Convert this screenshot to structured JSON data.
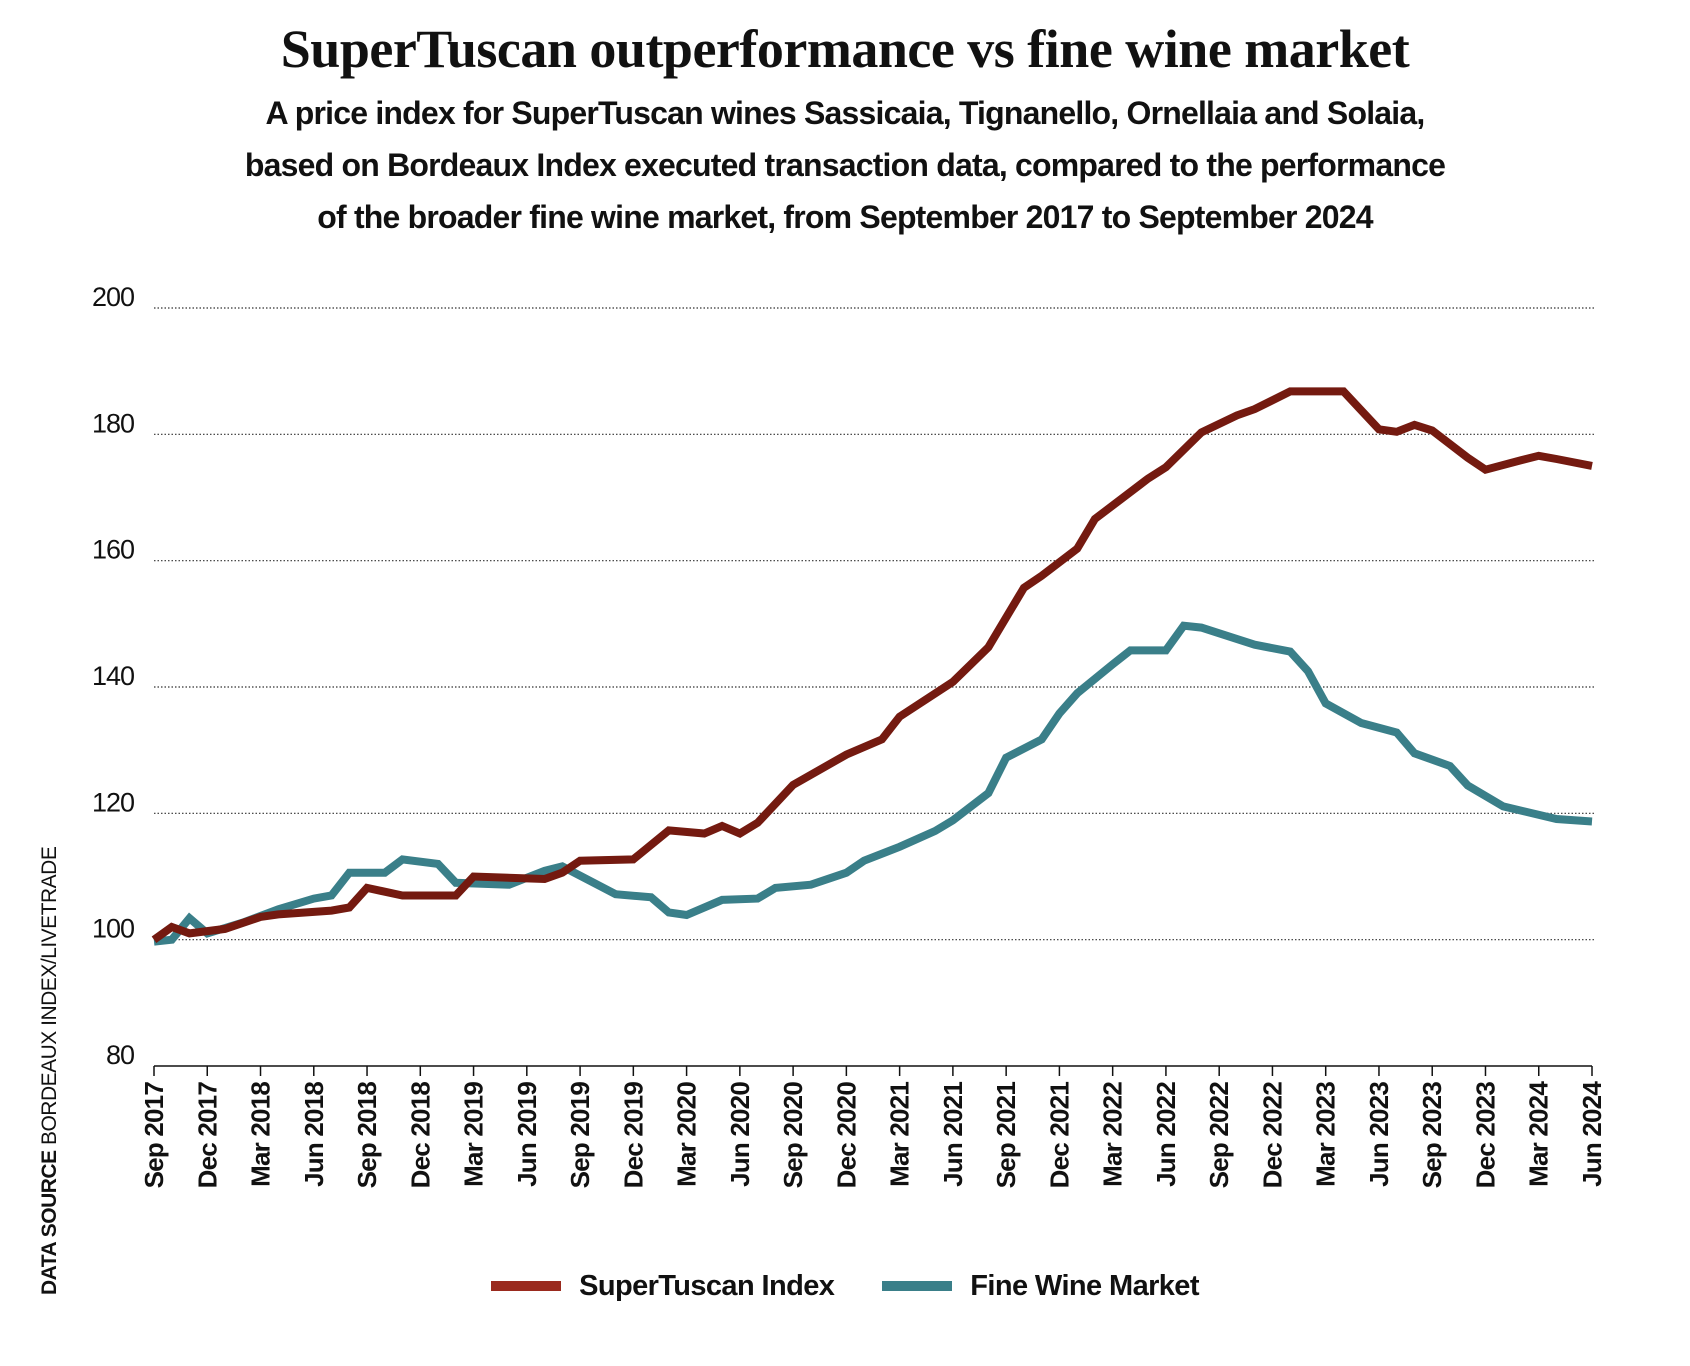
{
  "chart_data": {
    "type": "line",
    "title": "SuperTuscan outperformance vs fine wine market",
    "subtitle": [
      "A price index for SuperTuscan wines Sassicaia, Tignanello, Ornellaia and Solaia,",
      "based on Bordeaux Index executed transaction data, compared to the performance",
      "of the broader fine wine market, from September 2017 to September 2024"
    ],
    "source_label": "DATA SOURCE",
    "source_text": "BORDEAUX INDEX/LIVETRADE",
    "ylim": [
      80,
      200
    ],
    "yticks": [
      "200",
      "180",
      "160",
      "140",
      "120",
      "100",
      "80"
    ],
    "ytick_values": [
      200,
      180,
      160,
      140,
      120,
      100,
      80
    ],
    "xlim": [
      "2017-09",
      "2024-06"
    ],
    "xticks": [
      "Sep 2017",
      "Dec 2017",
      "Mar 2018",
      "Jun 2018",
      "Sep 2018",
      "Dec 2018",
      "Mar 2019",
      "Jun 2019",
      "Sep 2019",
      "Dec 2019",
      "Mar 2020",
      "Jun 2020",
      "Sep 2020",
      "Dec 2020",
      "Mar 2021",
      "Jun 2021",
      "Sep 2021",
      "Dec 2021",
      "Mar 2022",
      "Jun 2022",
      "Sep 2022",
      "Dec 2022",
      "Mar 2023",
      "Jun 2023",
      "Sep 2023",
      "Dec 2023",
      "Mar 2024",
      "Jun 2024"
    ],
    "grid": "horizontal dotted",
    "legend_position": "bottom",
    "series": [
      {
        "name": "SuperTuscan Index",
        "color": "#741a10",
        "legend_color": "#9a2a1e",
        "points": [
          [
            "2017-09",
            100
          ],
          [
            "2017-10",
            102
          ],
          [
            "2017-11",
            101
          ],
          [
            "2018-01",
            101.7
          ],
          [
            "2018-03",
            103.6
          ],
          [
            "2018-04",
            104
          ],
          [
            "2018-07",
            104.6
          ],
          [
            "2018-08",
            105.1
          ],
          [
            "2018-09",
            108.2
          ],
          [
            "2018-11",
            107
          ],
          [
            "2019-02",
            107
          ],
          [
            "2019-03",
            110
          ],
          [
            "2019-07",
            109.6
          ],
          [
            "2019-08",
            110.6
          ],
          [
            "2019-09",
            112.5
          ],
          [
            "2019-12",
            112.7
          ],
          [
            "2020-02",
            117.3
          ],
          [
            "2020-04",
            116.8
          ],
          [
            "2020-05",
            118
          ],
          [
            "2020-06",
            116.8
          ],
          [
            "2020-07",
            118.5
          ],
          [
            "2020-09",
            124.5
          ],
          [
            "2020-12",
            129.3
          ],
          [
            "2021-02",
            131.7
          ],
          [
            "2021-03",
            135.3
          ],
          [
            "2021-06",
            140.8
          ],
          [
            "2021-08",
            146.3
          ],
          [
            "2021-10",
            155.7
          ],
          [
            "2021-11",
            157.6
          ],
          [
            "2022-01",
            161.9
          ],
          [
            "2022-02",
            166.6
          ],
          [
            "2022-05",
            173
          ],
          [
            "2022-06",
            174.8
          ],
          [
            "2022-08",
            180.3
          ],
          [
            "2022-10",
            183
          ],
          [
            "2022-11",
            184
          ],
          [
            "2023-01",
            186.8
          ],
          [
            "2023-04",
            186.8
          ],
          [
            "2023-06",
            180.8
          ],
          [
            "2023-07",
            180.4
          ],
          [
            "2023-08",
            181.5
          ],
          [
            "2023-09",
            180.6
          ],
          [
            "2023-11",
            176.3
          ],
          [
            "2023-12",
            174.4
          ],
          [
            "2024-02",
            175.9
          ],
          [
            "2024-03",
            176.6
          ],
          [
            "2024-04",
            176.1
          ],
          [
            "2024-06",
            175
          ]
        ]
      },
      {
        "name": "Fine Wine Market",
        "color": "#3a7f89",
        "legend_color": "#3a7f89",
        "points": [
          [
            "2017-09",
            99.7
          ],
          [
            "2017-10",
            100
          ],
          [
            "2017-11",
            103.4
          ],
          [
            "2017-12",
            101
          ],
          [
            "2018-02",
            102.7
          ],
          [
            "2018-04",
            104.8
          ],
          [
            "2018-06",
            106.5
          ],
          [
            "2018-07",
            107
          ],
          [
            "2018-08",
            110.6
          ],
          [
            "2018-10",
            110.6
          ],
          [
            "2018-11",
            112.7
          ],
          [
            "2019-01",
            112
          ],
          [
            "2019-02",
            109
          ],
          [
            "2019-05",
            108.7
          ],
          [
            "2019-07",
            110.9
          ],
          [
            "2019-08",
            111.6
          ],
          [
            "2019-11",
            107.2
          ],
          [
            "2020-01",
            106.7
          ],
          [
            "2020-02",
            104.3
          ],
          [
            "2020-03",
            103.9
          ],
          [
            "2020-05",
            106.3
          ],
          [
            "2020-07",
            106.5
          ],
          [
            "2020-08",
            108.2
          ],
          [
            "2020-10",
            108.7
          ],
          [
            "2020-12",
            110.6
          ],
          [
            "2021-01",
            112.5
          ],
          [
            "2021-03",
            114.7
          ],
          [
            "2021-05",
            117.2
          ],
          [
            "2021-06",
            118.9
          ],
          [
            "2021-08",
            123.2
          ],
          [
            "2021-09",
            128.8
          ],
          [
            "2021-11",
            131.7
          ],
          [
            "2021-12",
            135.8
          ],
          [
            "2022-01",
            139
          ],
          [
            "2022-03",
            143.6
          ],
          [
            "2022-04",
            145.8
          ],
          [
            "2022-06",
            145.8
          ],
          [
            "2022-07",
            149.7
          ],
          [
            "2022-08",
            149.4
          ],
          [
            "2022-11",
            146.7
          ],
          [
            "2023-01",
            145.6
          ],
          [
            "2023-02",
            142.5
          ],
          [
            "2023-03",
            137.4
          ],
          [
            "2023-05",
            134.3
          ],
          [
            "2023-07",
            132.8
          ],
          [
            "2023-08",
            129.5
          ],
          [
            "2023-10",
            127.5
          ],
          [
            "2023-11",
            124.4
          ],
          [
            "2024-01",
            121.1
          ],
          [
            "2024-04",
            119.1
          ],
          [
            "2024-06",
            118.7
          ]
        ]
      }
    ]
  }
}
